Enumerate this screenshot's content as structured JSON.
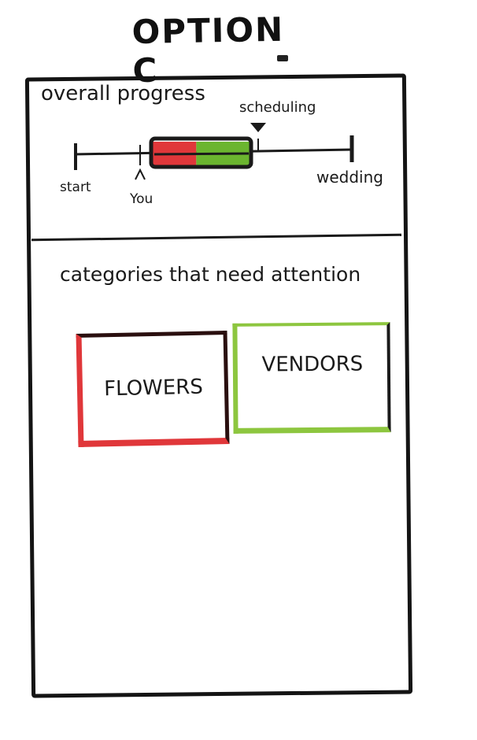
{
  "title": "OPTION C",
  "overall_progress": {
    "label": "overall progress",
    "markers": {
      "start": "start",
      "you": "You",
      "scheduling": "scheduling",
      "wedding": "wedding"
    },
    "progress_bar": {
      "red_fraction": 0.45,
      "green_fraction": 0.55
    }
  },
  "attention": {
    "label": "categories that need attention",
    "categories": [
      {
        "label": "FLOWERS",
        "status_color": "#e0373a"
      },
      {
        "label": "VENDORS",
        "status_color": "#8dc63f"
      }
    ]
  },
  "colors": {
    "needs_work": "#e0373a",
    "on_track": "#8dc63f",
    "ink": "#1a1a1a"
  }
}
